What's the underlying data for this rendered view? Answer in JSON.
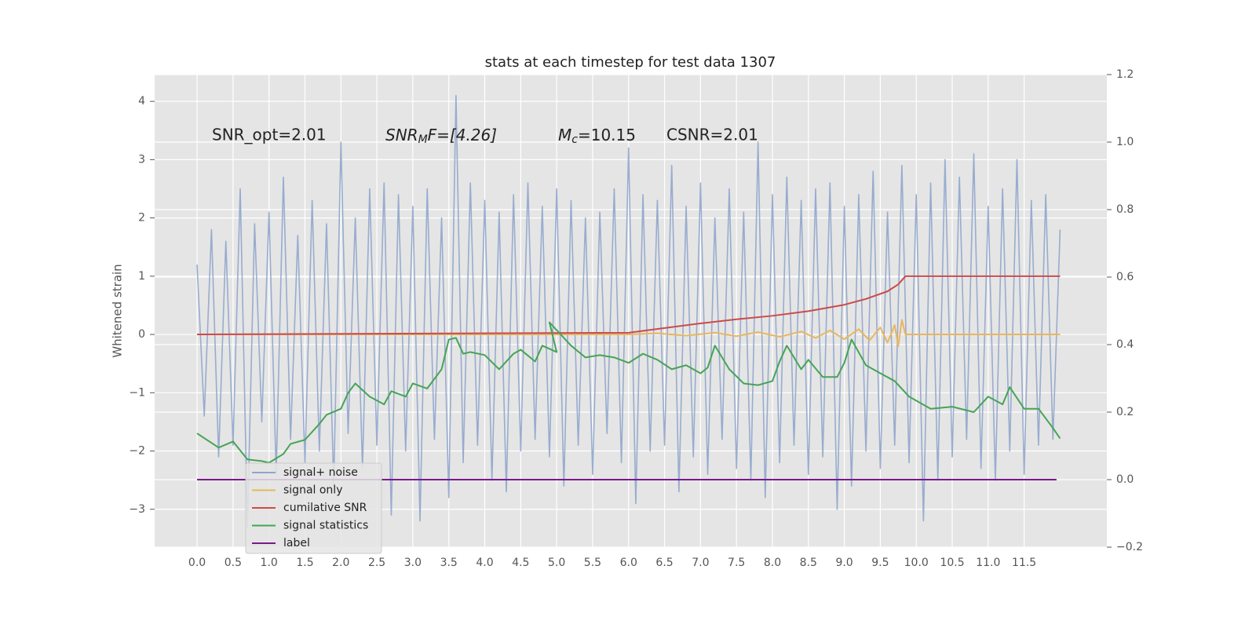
{
  "chart_data": {
    "type": "line",
    "title": "stats at each timestep for test data 1307",
    "ylabel": "Whitened strain",
    "annotations": [
      "SNR_opt=2.01",
      [
        "SNR",
        "M",
        "F=[4.26]"
      ],
      [
        "M",
        "c",
        "=10.15"
      ],
      "CSNR=2.01"
    ],
    "xlim": [
      -0.59,
      12.65
    ],
    "ylim": [
      -3.65,
      4.46
    ],
    "y2lim": [
      -0.2,
      1.2
    ],
    "xticks": [
      {
        "value": 0,
        "label": "0.0"
      },
      0.5,
      {
        "value": 1,
        "label": "1.0"
      },
      1.5,
      {
        "value": 2,
        "label": "2.0"
      },
      2.5,
      {
        "value": 3,
        "label": "3.0"
      },
      3.5,
      {
        "value": 4,
        "label": "4.0"
      },
      4.5,
      {
        "value": 5,
        "label": "5.0"
      },
      5.5,
      {
        "value": 6,
        "label": "6.0"
      },
      6.5,
      {
        "value": 7,
        "label": "7.0"
      },
      7.5,
      {
        "value": 8,
        "label": "8.0"
      },
      8.5,
      {
        "value": 9,
        "label": "9.0"
      },
      9.5,
      {
        "value": 10,
        "label": "10.0"
      },
      10.5,
      {
        "value": 11,
        "label": "11.0"
      },
      11.5
    ],
    "yticks": [
      {
        "value": -3,
        "label": "−3"
      },
      {
        "value": -2,
        "label": "−2"
      },
      {
        "value": -1,
        "label": "−1"
      },
      0,
      1,
      2,
      3,
      4
    ],
    "y2ticks": [
      {
        "value": -0.2,
        "label": "−0.2"
      },
      {
        "value": 0,
        "label": "0.0"
      },
      0.2,
      0.4,
      0.6,
      0.8,
      {
        "value": 1,
        "label": "1.0"
      },
      {
        "value": 1.2,
        "label": "1.2"
      }
    ],
    "grid": true,
    "legend": "lower left",
    "series": [
      {
        "name": "signal+ noise",
        "color": "#8fa5cc",
        "axis": "y",
        "x": [
          0,
          0.1,
          0.2,
          0.3,
          0.4,
          0.5,
          0.6,
          0.7,
          0.8,
          0.9,
          1,
          1.1,
          1.2,
          1.3,
          1.4,
          1.5,
          1.6,
          1.7,
          1.8,
          1.9,
          2,
          2.1,
          2.2,
          2.3,
          2.4,
          2.5,
          2.6,
          2.7,
          2.8,
          2.9,
          3,
          3.1,
          3.2,
          3.3,
          3.4,
          3.5,
          3.6,
          3.7,
          3.8,
          3.9,
          4,
          4.1,
          4.2,
          4.3,
          4.4,
          4.5,
          4.6,
          4.7,
          4.8,
          4.9,
          5,
          5.1,
          5.2,
          5.3,
          5.4,
          5.5,
          5.6,
          5.7,
          5.8,
          5.9,
          6,
          6.1,
          6.2,
          6.3,
          6.4,
          6.5,
          6.6,
          6.7,
          6.8,
          6.9,
          7,
          7.1,
          7.2,
          7.3,
          7.4,
          7.5,
          7.6,
          7.7,
          7.8,
          7.9,
          8,
          8.1,
          8.2,
          8.3,
          8.4,
          8.5,
          8.6,
          8.7,
          8.8,
          8.9,
          9,
          9.1,
          9.2,
          9.3,
          9.4,
          9.5,
          9.6,
          9.7,
          9.8,
          9.9,
          10,
          10.1,
          10.2,
          10.3,
          10.4,
          10.5,
          10.6,
          10.7,
          10.8,
          10.9,
          11,
          11.1,
          11.2,
          11.3,
          11.4,
          11.5,
          11.6,
          11.7,
          11.8,
          11.9,
          12
        ],
        "values": [
          1.2,
          -1.4,
          1.8,
          -2.1,
          1.6,
          -1.9,
          2.5,
          -3.3,
          1.9,
          -1.5,
          2.1,
          -2.4,
          2.7,
          -1.8,
          1.7,
          -2.2,
          2.3,
          -2.0,
          1.9,
          -2.6,
          3.3,
          -1.7,
          2.0,
          -2.3,
          2.5,
          -1.9,
          2.6,
          -3.1,
          2.4,
          -2.0,
          2.2,
          -3.2,
          2.5,
          -1.8,
          2.0,
          -2.8,
          4.1,
          -2.2,
          2.6,
          -1.9,
          2.3,
          -2.5,
          2.1,
          -2.7,
          2.4,
          -2.0,
          2.6,
          -1.8,
          2.2,
          -2.1,
          2.5,
          -2.6,
          2.3,
          -1.9,
          2.0,
          -2.4,
          2.1,
          -1.7,
          2.5,
          -2.2,
          3.2,
          -2.9,
          2.4,
          -2.0,
          2.3,
          -1.9,
          2.9,
          -2.7,
          2.2,
          -2.1,
          2.6,
          -2.4,
          2.0,
          -1.8,
          2.5,
          -2.3,
          2.1,
          -2.5,
          3.3,
          -2.8,
          2.4,
          -2.2,
          2.7,
          -1.9,
          2.3,
          -2.4,
          2.5,
          -2.1,
          2.6,
          -3.0,
          2.2,
          -2.6,
          2.4,
          -2.0,
          2.8,
          -2.3,
          2.1,
          -1.9,
          2.9,
          -2.2,
          2.4,
          -3.2,
          2.6,
          -2.5,
          3.0,
          -2.1,
          2.7,
          -1.8,
          3.1,
          -2.3,
          2.2,
          -2.5,
          2.5,
          -2.0,
          3.0,
          -2.4,
          2.3,
          -1.9,
          2.4,
          -1.8,
          1.8
        ]
      },
      {
        "name": "signal only",
        "color": "#e8b660",
        "axis": "y",
        "x": [
          0,
          6.0,
          6.4,
          6.8,
          7.2,
          7.5,
          7.8,
          8.1,
          8.4,
          8.6,
          8.8,
          9.0,
          9.2,
          9.35,
          9.5,
          9.6,
          9.7,
          9.75,
          9.8,
          9.85,
          12.0
        ],
        "values": [
          0,
          0,
          0.02,
          -0.02,
          0.03,
          -0.03,
          0.04,
          -0.04,
          0.05,
          -0.06,
          0.07,
          -0.08,
          0.09,
          -0.1,
          0.12,
          -0.14,
          0.16,
          -0.2,
          0.25,
          0,
          0
        ]
      },
      {
        "name": "cumilative SNR",
        "color": "#cc4a4a",
        "axis": "y",
        "x": [
          0,
          6.0,
          6.5,
          7.0,
          7.5,
          8.0,
          8.5,
          9.0,
          9.3,
          9.6,
          9.75,
          9.85,
          12.0
        ],
        "values": [
          0,
          0.03,
          0.11,
          0.19,
          0.26,
          0.32,
          0.4,
          0.51,
          0.61,
          0.74,
          0.86,
          1.0,
          1.0
        ]
      },
      {
        "name": "signal statistics",
        "color": "#45a455",
        "axis": "y2",
        "x": [
          0,
          0.3,
          0.5,
          0.7,
          0.9,
          1.0,
          1.2,
          1.3,
          1.5,
          1.7,
          1.8,
          2.0,
          2.1,
          2.2,
          2.4,
          2.6,
          2.7,
          2.9,
          3.0,
          3.2,
          3.4,
          3.5,
          3.6,
          3.7,
          3.8,
          4.0,
          4.2,
          4.4,
          4.5,
          4.7,
          4.8,
          5.0,
          4.9,
          5.2,
          5.4,
          5.6,
          5.8,
          6.0,
          6.2,
          6.4,
          6.6,
          6.8,
          7.0,
          7.1,
          7.2,
          7.4,
          7.6,
          7.8,
          8.0,
          8.1,
          8.2,
          8.4,
          8.5,
          8.7,
          8.9,
          9.0,
          9.1,
          9.3,
          9.5,
          9.7,
          9.9,
          10.2,
          10.5,
          10.8,
          11.0,
          11.2,
          11.3,
          11.5,
          11.7,
          11.9,
          12.0
        ],
        "values": [
          0.137,
          0.095,
          0.113,
          0.06,
          0.055,
          0.05,
          0.076,
          0.106,
          0.118,
          0.165,
          0.192,
          0.21,
          0.257,
          0.285,
          0.246,
          0.223,
          0.262,
          0.246,
          0.285,
          0.27,
          0.327,
          0.415,
          0.42,
          0.373,
          0.378,
          0.369,
          0.327,
          0.373,
          0.385,
          0.35,
          0.397,
          0.378,
          0.466,
          0.397,
          0.362,
          0.369,
          0.362,
          0.346,
          0.373,
          0.355,
          0.327,
          0.339,
          0.315,
          0.332,
          0.397,
          0.327,
          0.285,
          0.28,
          0.292,
          0.35,
          0.397,
          0.327,
          0.355,
          0.304,
          0.304,
          0.346,
          0.415,
          0.339,
          0.315,
          0.292,
          0.246,
          0.21,
          0.216,
          0.2,
          0.246,
          0.223,
          0.274,
          0.21,
          0.21,
          0.153,
          0.122
        ]
      },
      {
        "name": "label",
        "color": "#7a1a8a",
        "axis": "y2",
        "x": [
          0,
          11.95
        ],
        "values": [
          0,
          0
        ]
      }
    ]
  }
}
